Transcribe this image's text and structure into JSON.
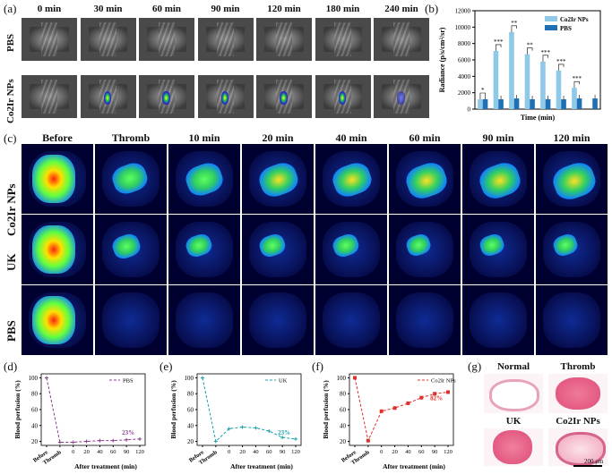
{
  "panel_a": {
    "label": "(a)",
    "columns": [
      "0 min",
      "30 min",
      "60 min",
      "90 min",
      "120 min",
      "180 min",
      "240 min"
    ],
    "rows": [
      "PBS",
      "Co2Ir NPs"
    ]
  },
  "panel_b": {
    "label": "(b)"
  },
  "panel_c": {
    "label": "(c)",
    "columns": [
      "Before",
      "Thromb",
      "10 min",
      "20 min",
      "40 min",
      "60 min",
      "90 min",
      "120 min"
    ],
    "rows": [
      "Co2Ir NPs",
      "UK",
      "PBS"
    ]
  },
  "panel_d": {
    "label": "(d)"
  },
  "panel_e": {
    "label": "(e)"
  },
  "panel_f": {
    "label": "(f)"
  },
  "panel_g": {
    "label": "(g)",
    "titles": [
      "Normal",
      "Thromb",
      "UK",
      "Co2Ir NPs"
    ],
    "scale_bar": "200 μm"
  },
  "colors": {
    "co2ir": "#8fc9e8",
    "pbs": "#1f6fb4",
    "d_line": "#8a3f8a",
    "e_line": "#1aa1a8",
    "f_line": "#e0302a"
  },
  "chart_data": [
    {
      "type": "bar",
      "panel": "b",
      "categories": [
        "0",
        "30",
        "60",
        "90",
        "120",
        "180",
        "240",
        "300"
      ],
      "series": [
        {
          "name": "Co2Ir NPs",
          "values": [
            1200,
            7100,
            9400,
            6700,
            5800,
            4700,
            2600,
            0
          ]
        },
        {
          "name": "PBS",
          "values": [
            1200,
            1200,
            1300,
            1200,
            1200,
            1200,
            1300,
            1300
          ]
        }
      ],
      "significance": [
        "*",
        "***",
        "**",
        "**",
        "***",
        "***",
        "***",
        ""
      ],
      "xlabel": "Time (min)",
      "ylabel": "Radiance (p/s/cm²/sr)",
      "yticks": [
        "0",
        "2000",
        "4000",
        "6000",
        "8000",
        "10000",
        "12000"
      ],
      "ylim": [
        0,
        12000
      ],
      "legend": "top-right"
    },
    {
      "type": "line",
      "panel": "d",
      "series": [
        {
          "name": "PBS",
          "x": [
            0,
            5,
            10,
            20,
            40,
            60,
            90,
            120
          ],
          "y": [
            100,
            19,
            19,
            20,
            21,
            21,
            22,
            23
          ]
        }
      ],
      "xticks": [
        "Before",
        "Thromb",
        "0",
        "20",
        "40",
        "60",
        "90",
        "120"
      ],
      "xlabel": "After treatment (min)",
      "ylabel": "Blood perfusion (%)",
      "yticks": [
        "20",
        "40",
        "60",
        "80",
        "100"
      ],
      "ylim": [
        15,
        105
      ],
      "annotation": "23%"
    },
    {
      "type": "line",
      "panel": "e",
      "series": [
        {
          "name": "UK",
          "x": [
            0,
            5,
            10,
            20,
            40,
            60,
            90,
            120
          ],
          "y": [
            100,
            20,
            36,
            38,
            37,
            33,
            25,
            23
          ]
        }
      ],
      "xticks": [
        "Before",
        "Thromb",
        "0",
        "20",
        "40",
        "60",
        "90",
        "120"
      ],
      "xlabel": "After treatment (min)",
      "ylabel": "Blood perfusion (%)",
      "yticks": [
        "20",
        "40",
        "60",
        "80",
        "100"
      ],
      "ylim": [
        15,
        105
      ],
      "annotation": "23%"
    },
    {
      "type": "line",
      "panel": "f",
      "series": [
        {
          "name": "Co2Ir NPs",
          "x": [
            0,
            5,
            10,
            20,
            40,
            60,
            90,
            120
          ],
          "y": [
            100,
            21,
            58,
            62,
            68,
            75,
            80,
            82
          ]
        }
      ],
      "xticks": [
        "Before",
        "Thromb",
        "0",
        "20",
        "40",
        "60",
        "90",
        "120"
      ],
      "xlabel": "After treatment (min)",
      "ylabel": "Blood perfusion (%)",
      "yticks": [
        "20",
        "40",
        "60",
        "80",
        "100"
      ],
      "ylim": [
        15,
        105
      ],
      "annotation": "82%"
    }
  ]
}
